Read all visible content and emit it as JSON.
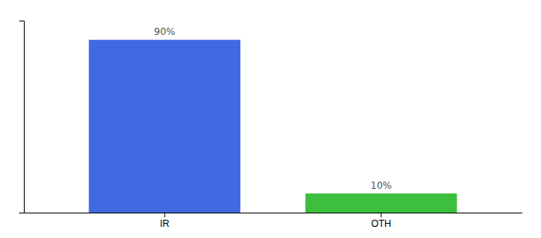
{
  "chart_data": {
    "type": "bar",
    "categories": [
      "IR",
      "OTH"
    ],
    "values": [
      90,
      10
    ],
    "value_labels": [
      "90%",
      "10%"
    ],
    "colors": [
      "#4169e1",
      "#3dbe3d"
    ],
    "ylim": [
      0,
      100
    ],
    "yticks": [],
    "data_labels": true,
    "tick_labels": "x"
  }
}
